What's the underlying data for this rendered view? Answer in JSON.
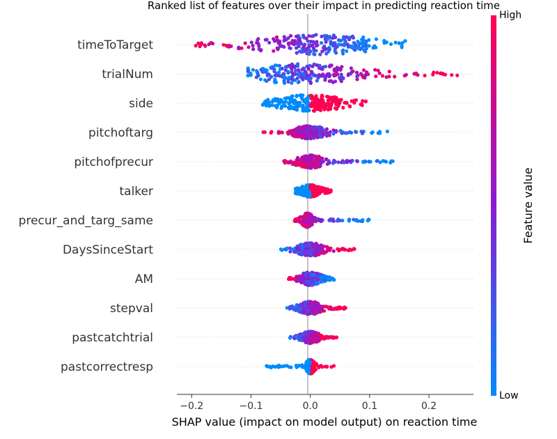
{
  "chart_data": {
    "type": "scatter",
    "title": "Ranked list of features over their impact in predicting reaction time",
    "xlabel": "SHAP value (impact on model output) on reaction time",
    "xlim": [
      -0.225,
      0.275
    ],
    "xticks": [
      -0.2,
      -0.1,
      0.0,
      0.1,
      0.2
    ],
    "xtick_labels": [
      "−0.2",
      "−0.1",
      "0.0",
      "0.1",
      "0.2"
    ],
    "colorbar": {
      "label": "Feature value",
      "high_label": "High",
      "low_label": "Low",
      "high_color": "#ff0052",
      "mid_color": "#8b1ad6",
      "low_color": "#008bfb"
    },
    "zero_line_color": "#999999",
    "features": [
      {
        "name": "timeToTarget",
        "min": -0.2,
        "max": 0.16,
        "center": 0.015,
        "spread": 0.055,
        "height": 0.9,
        "polarity": "low_right"
      },
      {
        "name": "trialNum",
        "min": -0.105,
        "max": 0.25,
        "center": -0.01,
        "spread": 0.05,
        "height": 0.9,
        "polarity": "high_right"
      },
      {
        "name": "side",
        "min": -0.085,
        "max": 0.095,
        "center": 0.0,
        "spread": 0.03,
        "height": 0.75,
        "polarity": "split"
      },
      {
        "name": "pitchoftarg",
        "min": -0.08,
        "max": 0.13,
        "center": 0.0,
        "spread": 0.015,
        "height": 0.6,
        "polarity": "low_right"
      },
      {
        "name": "pitchofprecur",
        "min": -0.05,
        "max": 0.14,
        "center": 0.0,
        "spread": 0.012,
        "height": 0.6,
        "polarity": "low_right"
      },
      {
        "name": "talker",
        "min": -0.025,
        "max": 0.035,
        "center": 0.0,
        "spread": 0.01,
        "height": 0.55,
        "polarity": "split"
      },
      {
        "name": "precur_and_targ_same",
        "min": -0.04,
        "max": 0.1,
        "center": -0.005,
        "spread": 0.005,
        "height": 0.65,
        "polarity": "low_right"
      },
      {
        "name": "DaysSinceStart",
        "min": -0.05,
        "max": 0.075,
        "center": 0.0,
        "spread": 0.012,
        "height": 0.6,
        "polarity": "high_right"
      },
      {
        "name": "AM",
        "min": -0.04,
        "max": 0.04,
        "center": 0.0,
        "spread": 0.01,
        "height": 0.6,
        "polarity": "low_right"
      },
      {
        "name": "stepval",
        "min": -0.04,
        "max": 0.06,
        "center": 0.0,
        "spread": 0.01,
        "height": 0.6,
        "polarity": "high_right"
      },
      {
        "name": "pastcatchtrial",
        "min": -0.04,
        "max": 0.045,
        "center": 0.0,
        "spread": 0.008,
        "height": 0.55,
        "polarity": "high_right"
      },
      {
        "name": "pastcorrectresp",
        "min": -0.075,
        "max": 0.04,
        "center": 0.0,
        "spread": 0.004,
        "height": 0.65,
        "polarity": "low_left"
      }
    ]
  }
}
